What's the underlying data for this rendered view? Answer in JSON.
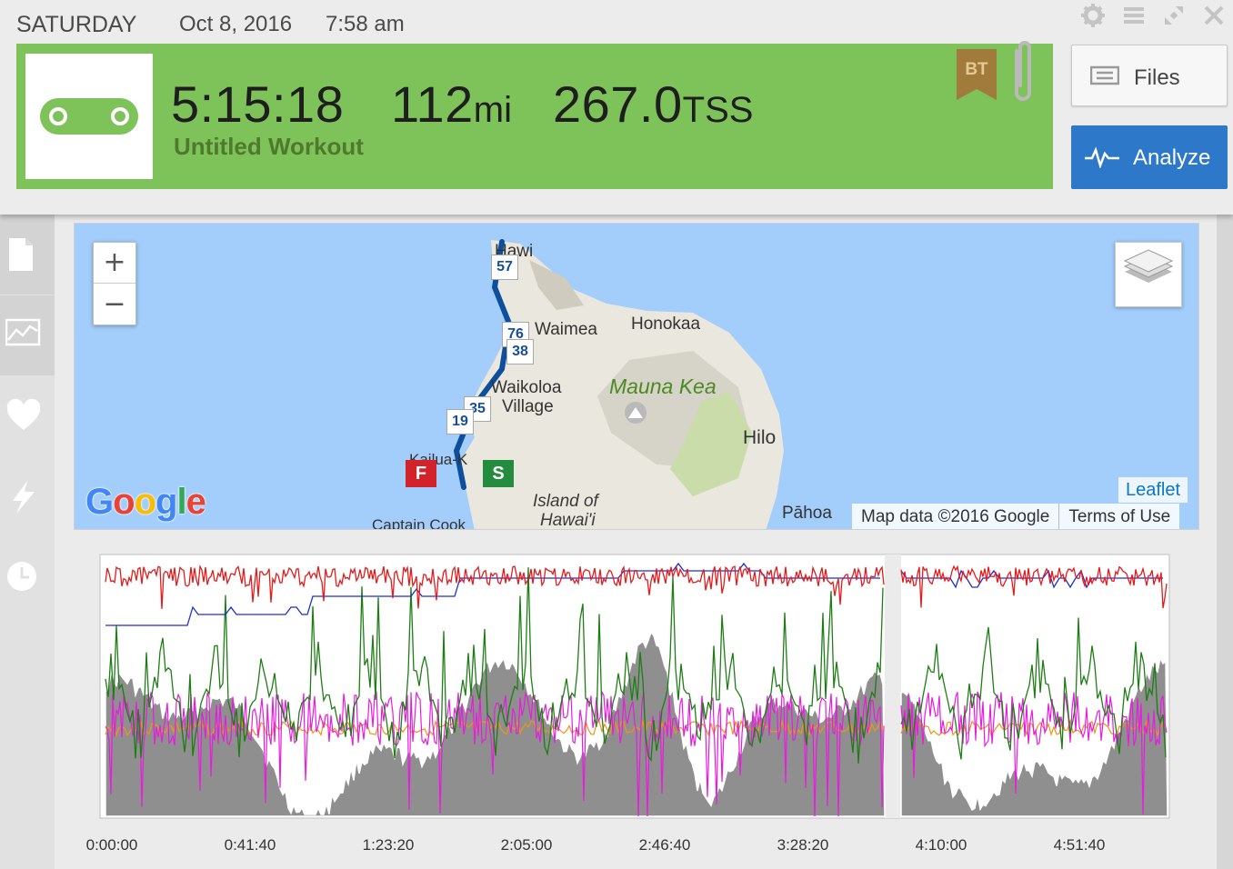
{
  "header": {
    "day": "SATURDAY",
    "date": "Oct 8, 2016",
    "time": "7:58 am",
    "window_icons": [
      "gear-icon",
      "menu-icon",
      "expand-icon",
      "close-icon"
    ]
  },
  "summary": {
    "background_color": "#7ec25a",
    "sport_icon": "bike-chain-icon",
    "duration": "5:15:18",
    "distance_value": "112",
    "distance_unit": "mi",
    "tss_value": "267.0",
    "tss_unit": "TSS",
    "title": "Untitled Workout",
    "badge": "BT",
    "attachment_icon": "paperclip-icon"
  },
  "actions": {
    "files_label": "Files",
    "analyze_label": "Analyze",
    "analyze_color": "#2d78c8"
  },
  "rail": {
    "items": [
      "document-icon",
      "graph-icon",
      "heart-icon",
      "lightning-icon",
      "clock-icon"
    ]
  },
  "map": {
    "zoom_in": "+",
    "zoom_out": "−",
    "labels": {
      "hawi": "Hawi",
      "waimea": "Waimea",
      "honokaa": "Honokaa",
      "waikoloa_1": "Waikoloa",
      "waikoloa_2": "Village",
      "mauna_kea": "Mauna Kea",
      "hilo": "Hilo",
      "kailua": "Kailua-K",
      "island_1": "Island of",
      "island_2": "Hawai'i",
      "captain_cook": "Captain Cook",
      "pahoa": "Pāhoa"
    },
    "shields": [
      "57",
      "76",
      "38",
      "35",
      "19"
    ],
    "flags": {
      "finish": "F",
      "start": "S"
    },
    "logo": "Google",
    "leaflet": "Leaflet",
    "attribution": "Map data ©2016 Google",
    "terms": "Terms of Use",
    "route_color": "#0d4f9c"
  },
  "chart": {
    "x_tick_labels": [
      "0:00:00",
      "0:41:40",
      "1:23:20",
      "2:05:00",
      "2:46:40",
      "3:28:20",
      "4:10:00",
      "4:51:40"
    ],
    "series_colors": {
      "elevation": "#8f8f8f",
      "heart_rate": "#e41b1b",
      "speed": "#1d2fd0",
      "power": "#1f7d16",
      "cadence": "#e81ce0",
      "temperature": "#f29412"
    }
  }
}
